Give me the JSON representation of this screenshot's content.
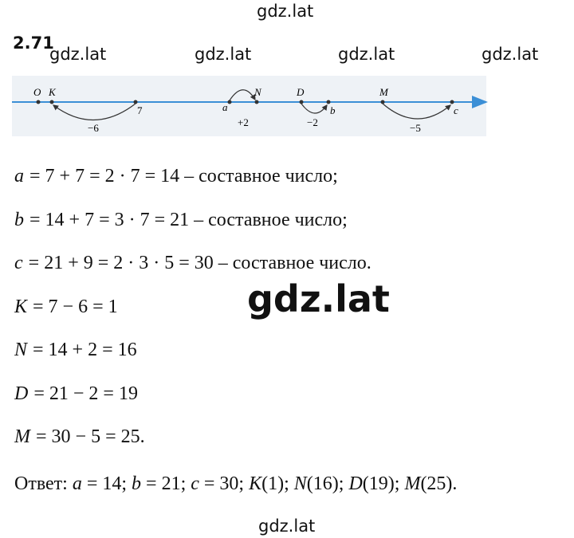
{
  "watermarks": [
    "gdz.lat",
    "gdz.lat",
    "gdz.lat",
    "gdz.lat",
    "gdz.lat",
    "gdz.lat",
    "gdz.lat"
  ],
  "problem_number": "2.71",
  "number_line": {
    "points": [
      "O",
      "K",
      "7",
      "a",
      "N",
      "D",
      "b",
      "M",
      "c"
    ],
    "steps": [
      "−6",
      "+2",
      "−2",
      "−5"
    ]
  },
  "lines": [
    {
      "var": "a",
      "expr": "= 7 + 7 = 2 · 7 = 14 – составное число;"
    },
    {
      "var": "b",
      "expr": "= 14 + 7 = 3 · 7 = 21 – составное число;"
    },
    {
      "var": "c",
      "expr": "= 21 + 9 = 2 · 3 · 5 = 30 – составное число."
    },
    {
      "var": "K",
      "expr": "= 7 − 6 = 1"
    },
    {
      "var": "N",
      "expr": "= 14 + 2 = 16"
    },
    {
      "var": "D",
      "expr": "= 21 − 2 = 19"
    },
    {
      "var": "M",
      "expr": "= 30 − 5 = 25."
    }
  ],
  "answer": {
    "label": "Ответ:",
    "items": [
      {
        "var": "a",
        "expr": "= 14;"
      },
      {
        "var": "b",
        "expr": "= 21;"
      },
      {
        "var": "c",
        "expr": "= 30;"
      },
      {
        "var": "K",
        "expr": "(1);"
      },
      {
        "var": "N",
        "expr": "(16);"
      },
      {
        "var": "D",
        "expr": "(19);"
      },
      {
        "var": "M",
        "expr": "(25)."
      }
    ]
  }
}
